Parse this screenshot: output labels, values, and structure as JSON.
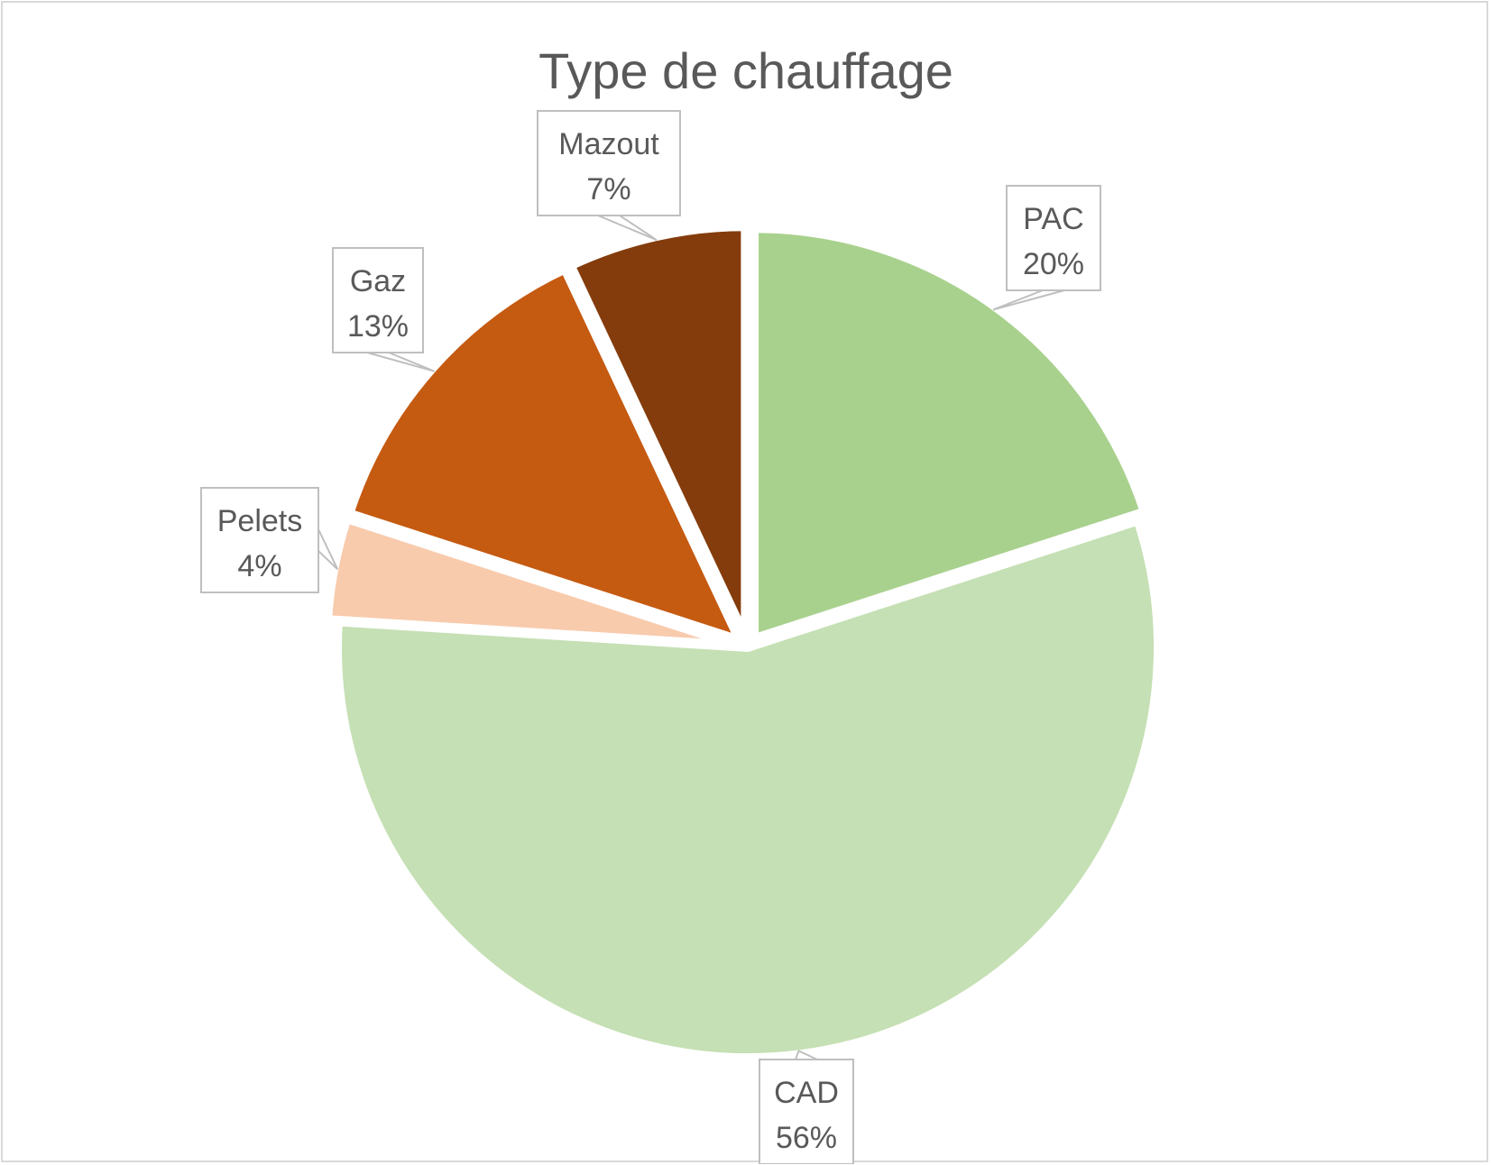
{
  "chart_data": {
    "type": "pie",
    "title": "Type de chauffage",
    "slices": [
      {
        "label": "PAC",
        "value": 20,
        "pct_label": "20%",
        "color": "#a9d18e"
      },
      {
        "label": "CAD",
        "value": 56,
        "pct_label": "56%",
        "color": "#c5e0b4"
      },
      {
        "label": "Pelets",
        "value": 4,
        "pct_label": "4%",
        "color": "#f8cbad"
      },
      {
        "label": "Gaz",
        "value": 13,
        "pct_label": "13%",
        "color": "#c55a11"
      },
      {
        "label": "Mazout",
        "value": 7,
        "pct_label": "7%",
        "color": "#843c0c"
      }
    ],
    "data_labels": "callout",
    "legend": "none"
  }
}
